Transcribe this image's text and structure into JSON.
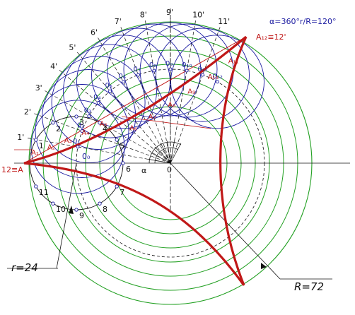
{
  "colors": {
    "background": "#ffffff",
    "rolling_circle": "#1a1aa0",
    "fixed_circle": "#22a022",
    "curve": "#c01818",
    "construction": "#111111",
    "label_red": "#c01818",
    "label_black": "#111111",
    "label_blue": "#1a1aa0"
  },
  "formula": "α=360°r/R=120°",
  "dimension_labels": {
    "small_radius": "r=24",
    "big_radius": "R=72"
  },
  "angle_label": "α",
  "center_label": "0",
  "start_label": "12≡A",
  "end_label": "A₁₂≡12'",
  "division_numbers": [
    "1",
    "2",
    "3",
    "4",
    "5",
    "6",
    "7",
    "8",
    "9",
    "10",
    "11"
  ],
  "circle_center_labels": [
    "0₁",
    "0₂",
    "0₃",
    "0₄",
    "0₅",
    "0₆",
    "0₇",
    "0₈",
    "0₉",
    "0₁₀",
    "0₁₁",
    "0₁₂"
  ],
  "outer_tick_labels": [
    "1'",
    "2'",
    "3'",
    "4'",
    "5'",
    "6'",
    "7'",
    "8'",
    "9'",
    "10'",
    "11'"
  ],
  "curve_point_labels": [
    "A₁",
    "A₂",
    "A₃",
    "A₄",
    "A₅",
    "A₆",
    "A₇",
    "A₈",
    "A₉",
    "A₁₀",
    "A₁₁"
  ],
  "zero_b_label": "0₀"
}
